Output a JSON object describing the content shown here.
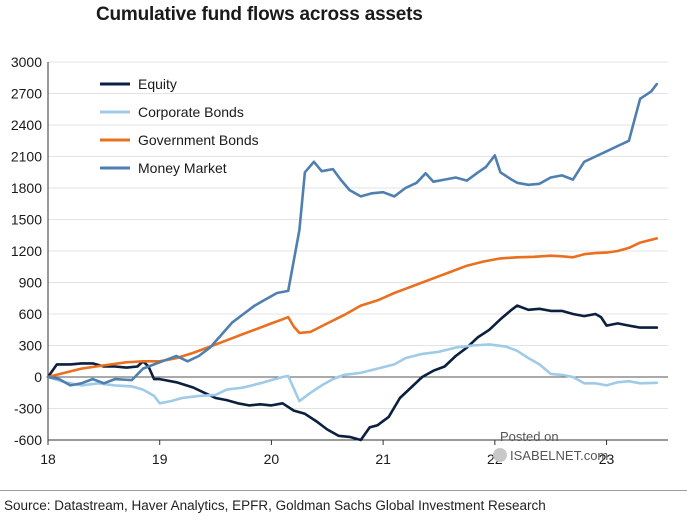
{
  "chart_data": {
    "type": "line",
    "title": "Cumulative fund flows across assets",
    "xlabel": "",
    "ylabel": "",
    "ylim": [
      -600,
      3000
    ],
    "xlim": [
      2018.0,
      2023.55
    ],
    "yticks": [
      -600,
      -300,
      0,
      300,
      600,
      900,
      1200,
      1500,
      1800,
      2100,
      2400,
      2700,
      3000
    ],
    "xticks": [
      {
        "value": 2018,
        "label": "18"
      },
      {
        "value": 2019,
        "label": "19"
      },
      {
        "value": 2020,
        "label": "20"
      },
      {
        "value": 2021,
        "label": "21"
      },
      {
        "value": 2022,
        "label": "22"
      },
      {
        "value": 2023,
        "label": "23"
      }
    ],
    "grid": "horizontal",
    "legend_position": "top-left",
    "series": [
      {
        "name": "Equity",
        "color": "#0b1f3f",
        "points": [
          [
            2018.0,
            0
          ],
          [
            2018.08,
            120
          ],
          [
            2018.2,
            120
          ],
          [
            2018.3,
            130
          ],
          [
            2018.4,
            130
          ],
          [
            2018.5,
            100
          ],
          [
            2018.6,
            100
          ],
          [
            2018.7,
            90
          ],
          [
            2018.8,
            100
          ],
          [
            2018.85,
            150
          ],
          [
            2018.9,
            100
          ],
          [
            2018.95,
            -20
          ],
          [
            2019.0,
            -20
          ],
          [
            2019.15,
            -50
          ],
          [
            2019.3,
            -100
          ],
          [
            2019.4,
            -150
          ],
          [
            2019.5,
            -200
          ],
          [
            2019.6,
            -220
          ],
          [
            2019.7,
            -250
          ],
          [
            2019.8,
            -270
          ],
          [
            2019.9,
            -260
          ],
          [
            2020.0,
            -270
          ],
          [
            2020.1,
            -250
          ],
          [
            2020.2,
            -320
          ],
          [
            2020.3,
            -350
          ],
          [
            2020.4,
            -420
          ],
          [
            2020.5,
            -500
          ],
          [
            2020.6,
            -560
          ],
          [
            2020.7,
            -570
          ],
          [
            2020.8,
            -600
          ],
          [
            2020.88,
            -480
          ],
          [
            2020.95,
            -460
          ],
          [
            2021.05,
            -380
          ],
          [
            2021.15,
            -200
          ],
          [
            2021.25,
            -100
          ],
          [
            2021.35,
            0
          ],
          [
            2021.45,
            60
          ],
          [
            2021.55,
            100
          ],
          [
            2021.65,
            200
          ],
          [
            2021.75,
            280
          ],
          [
            2021.85,
            380
          ],
          [
            2021.95,
            450
          ],
          [
            2022.05,
            550
          ],
          [
            2022.15,
            640
          ],
          [
            2022.2,
            680
          ],
          [
            2022.3,
            640
          ],
          [
            2022.4,
            650
          ],
          [
            2022.5,
            630
          ],
          [
            2022.6,
            630
          ],
          [
            2022.7,
            600
          ],
          [
            2022.8,
            580
          ],
          [
            2022.9,
            600
          ],
          [
            2022.95,
            570
          ],
          [
            2023.0,
            490
          ],
          [
            2023.1,
            510
          ],
          [
            2023.2,
            490
          ],
          [
            2023.3,
            470
          ],
          [
            2023.45,
            470
          ]
        ]
      },
      {
        "name": "Corporate Bonds",
        "color": "#9fcbe8",
        "points": [
          [
            2018.0,
            0
          ],
          [
            2018.15,
            -50
          ],
          [
            2018.3,
            -80
          ],
          [
            2018.45,
            -60
          ],
          [
            2018.6,
            -80
          ],
          [
            2018.75,
            -90
          ],
          [
            2018.85,
            -120
          ],
          [
            2018.95,
            -180
          ],
          [
            2019.0,
            -250
          ],
          [
            2019.1,
            -230
          ],
          [
            2019.2,
            -200
          ],
          [
            2019.35,
            -180
          ],
          [
            2019.5,
            -170
          ],
          [
            2019.6,
            -120
          ],
          [
            2019.75,
            -100
          ],
          [
            2019.9,
            -60
          ],
          [
            2020.0,
            -30
          ],
          [
            2020.1,
            0
          ],
          [
            2020.15,
            10
          ],
          [
            2020.25,
            -230
          ],
          [
            2020.35,
            -150
          ],
          [
            2020.45,
            -80
          ],
          [
            2020.55,
            -20
          ],
          [
            2020.65,
            20
          ],
          [
            2020.8,
            40
          ],
          [
            2020.95,
            80
          ],
          [
            2021.1,
            120
          ],
          [
            2021.2,
            180
          ],
          [
            2021.35,
            220
          ],
          [
            2021.5,
            240
          ],
          [
            2021.65,
            280
          ],
          [
            2021.8,
            300
          ],
          [
            2021.95,
            310
          ],
          [
            2022.1,
            290
          ],
          [
            2022.2,
            250
          ],
          [
            2022.3,
            180
          ],
          [
            2022.4,
            120
          ],
          [
            2022.5,
            30
          ],
          [
            2022.6,
            20
          ],
          [
            2022.7,
            0
          ],
          [
            2022.8,
            -60
          ],
          [
            2022.9,
            -60
          ],
          [
            2023.0,
            -80
          ],
          [
            2023.1,
            -50
          ],
          [
            2023.2,
            -40
          ],
          [
            2023.3,
            -60
          ],
          [
            2023.45,
            -55
          ]
        ]
      },
      {
        "name": "Government Bonds",
        "color": "#e8701e",
        "points": [
          [
            2018.0,
            0
          ],
          [
            2018.15,
            40
          ],
          [
            2018.3,
            80
          ],
          [
            2018.5,
            110
          ],
          [
            2018.7,
            140
          ],
          [
            2018.85,
            150
          ],
          [
            2019.0,
            150
          ],
          [
            2019.15,
            180
          ],
          [
            2019.3,
            230
          ],
          [
            2019.45,
            290
          ],
          [
            2019.6,
            350
          ],
          [
            2019.75,
            410
          ],
          [
            2019.9,
            470
          ],
          [
            2020.0,
            510
          ],
          [
            2020.1,
            550
          ],
          [
            2020.15,
            570
          ],
          [
            2020.2,
            480
          ],
          [
            2020.25,
            420
          ],
          [
            2020.35,
            430
          ],
          [
            2020.5,
            510
          ],
          [
            2020.65,
            590
          ],
          [
            2020.8,
            680
          ],
          [
            2020.95,
            730
          ],
          [
            2021.1,
            800
          ],
          [
            2021.2,
            840
          ],
          [
            2021.3,
            880
          ],
          [
            2021.45,
            940
          ],
          [
            2021.6,
            1000
          ],
          [
            2021.75,
            1060
          ],
          [
            2021.9,
            1100
          ],
          [
            2022.05,
            1130
          ],
          [
            2022.2,
            1140
          ],
          [
            2022.35,
            1145
          ],
          [
            2022.5,
            1155
          ],
          [
            2022.6,
            1150
          ],
          [
            2022.7,
            1140
          ],
          [
            2022.8,
            1170
          ],
          [
            2022.9,
            1180
          ],
          [
            2023.0,
            1185
          ],
          [
            2023.1,
            1200
          ],
          [
            2023.2,
            1230
          ],
          [
            2023.3,
            1280
          ],
          [
            2023.45,
            1320
          ]
        ]
      },
      {
        "name": "Money Market",
        "color": "#4f7fb0",
        "points": [
          [
            2018.0,
            0
          ],
          [
            2018.1,
            -20
          ],
          [
            2018.2,
            -80
          ],
          [
            2018.3,
            -60
          ],
          [
            2018.4,
            -20
          ],
          [
            2018.5,
            -60
          ],
          [
            2018.6,
            -20
          ],
          [
            2018.75,
            -30
          ],
          [
            2018.85,
            80
          ],
          [
            2018.95,
            120
          ],
          [
            2019.05,
            160
          ],
          [
            2019.15,
            200
          ],
          [
            2019.25,
            150
          ],
          [
            2019.35,
            200
          ],
          [
            2019.45,
            280
          ],
          [
            2019.55,
            400
          ],
          [
            2019.65,
            520
          ],
          [
            2019.75,
            600
          ],
          [
            2019.85,
            680
          ],
          [
            2019.95,
            740
          ],
          [
            2020.05,
            800
          ],
          [
            2020.15,
            820
          ],
          [
            2020.25,
            1400
          ],
          [
            2020.3,
            1950
          ],
          [
            2020.38,
            2050
          ],
          [
            2020.45,
            1960
          ],
          [
            2020.55,
            1980
          ],
          [
            2020.62,
            1880
          ],
          [
            2020.7,
            1780
          ],
          [
            2020.8,
            1720
          ],
          [
            2020.9,
            1750
          ],
          [
            2021.0,
            1760
          ],
          [
            2021.1,
            1720
          ],
          [
            2021.2,
            1800
          ],
          [
            2021.3,
            1850
          ],
          [
            2021.38,
            1940
          ],
          [
            2021.45,
            1860
          ],
          [
            2021.55,
            1880
          ],
          [
            2021.65,
            1900
          ],
          [
            2021.75,
            1870
          ],
          [
            2021.85,
            1950
          ],
          [
            2021.92,
            2000
          ],
          [
            2022.0,
            2110
          ],
          [
            2022.05,
            1950
          ],
          [
            2022.15,
            1880
          ],
          [
            2022.2,
            1850
          ],
          [
            2022.3,
            1830
          ],
          [
            2022.4,
            1840
          ],
          [
            2022.5,
            1900
          ],
          [
            2022.6,
            1920
          ],
          [
            2022.7,
            1880
          ],
          [
            2022.8,
            2050
          ],
          [
            2022.9,
            2100
          ],
          [
            2023.0,
            2150
          ],
          [
            2023.1,
            2200
          ],
          [
            2023.2,
            2250
          ],
          [
            2023.3,
            2650
          ],
          [
            2023.4,
            2720
          ],
          [
            2023.45,
            2790
          ]
        ]
      }
    ]
  },
  "source": "Source: Datastream, Haver Analytics, EPFR, Goldman Sachs Global Investment Research",
  "watermark": {
    "line1": "Posted on",
    "line2": "ISABELNET.com"
  }
}
